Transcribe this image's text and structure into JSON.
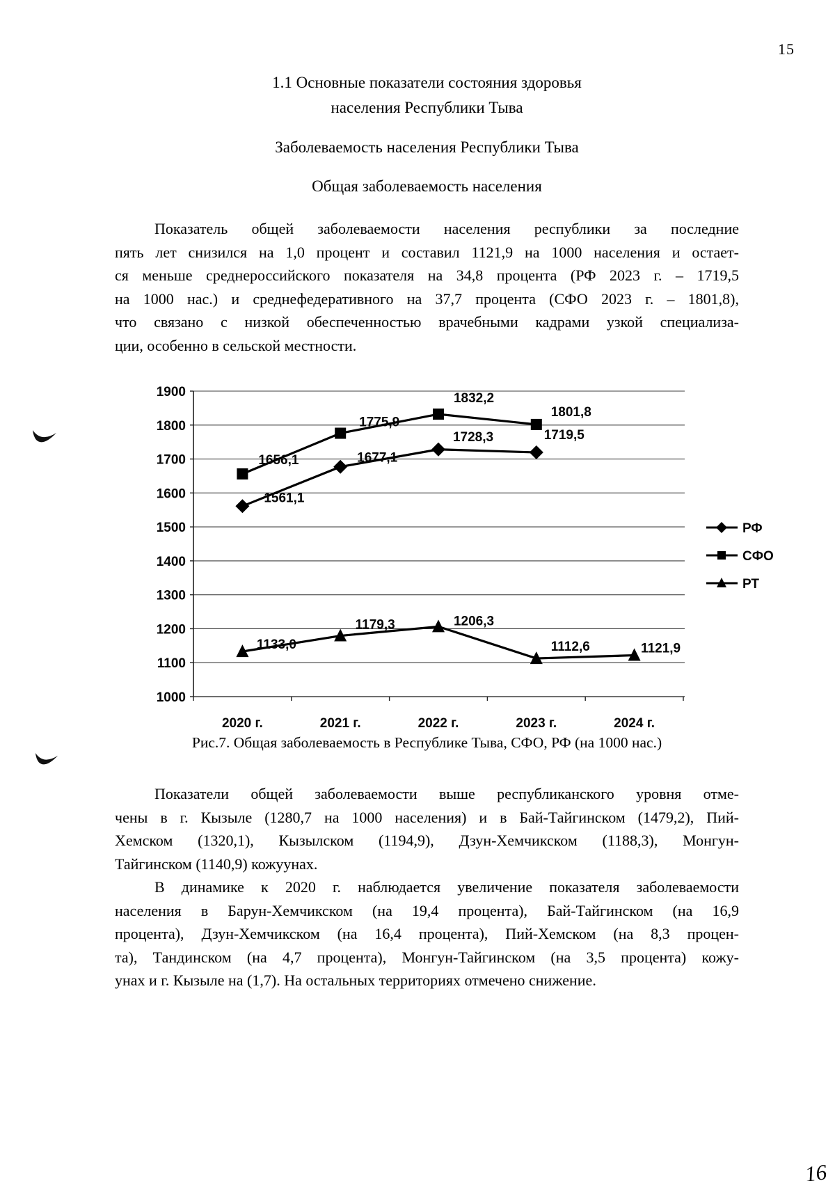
{
  "page": {
    "number": "15",
    "handwritten_next_page_number": "16"
  },
  "headings": {
    "title_line1": "1.1 Основные показатели состояния здоровья",
    "title_line2": "населения Республики Тыва",
    "subtitle1": "Заболеваемость населения Республики Тыва",
    "subtitle2": "Общая заболеваемость населения"
  },
  "paragraph1_lines": [
    "Показатель общей заболеваемости населения республики за последние",
    "пять лет снизился на 1,0 процент и составил 1121,9 на 1000 населения и остает-",
    "ся меньше среднероссийского показателя на 34,8 процента (РФ 2023 г. – 1719,5",
    "на 1000 нас.) и среднефедеративного на 37,7 процента (СФО 2023 г. – 1801,8),",
    "что связано с низкой обеспеченностью врачебными кадрами узкой специализа-",
    "ции, особенно в сельской местности."
  ],
  "paragraph2_lines": [
    "Показатели общей заболеваемости выше республиканского уровня отме-",
    "чены в г. Кызыле (1280,7 на 1000 населения) и в Бай-Тайгинском (1479,2), Пий-",
    "Хемском (1320,1), Кызылском (1194,9), Дзун-Хемчикском (1188,3), Монгун-",
    "Тайгинском (1140,9) кожуунах."
  ],
  "paragraph3_lines": [
    "В динамике к 2020 г. наблюдается увеличение показателя заболеваемости",
    "населения в Барун-Хемчикском (на 19,4 процента), Бай-Тайгинском (на 16,9",
    "процента), Дзун-Хемчикском (на 16,4 процента), Пий-Хемском (на 8,3 процен-",
    "та), Тандинском (на 4,7 процента), Монгун-Тайгинском (на 3,5 процента) кожу-",
    "унах и г. Кызыле на (1,7). На остальных территориях отмечено снижение."
  ],
  "figure_caption": "Рис.7. Общая заболеваемость в Республике Тыва, СФО, РФ (на 1000 нас.)",
  "chart_data": {
    "type": "line",
    "title": "",
    "xlabel": "",
    "ylabel": "",
    "categories": [
      "2020 г.",
      "2021 г.",
      "2022 г.",
      "2023 г.",
      "2024 г."
    ],
    "ylim": [
      1000,
      1900
    ],
    "ytick_step": 100,
    "grid": true,
    "legend_position": "right",
    "series": [
      {
        "name": "РФ",
        "marker": "diamond",
        "values": [
          1561.1,
          1677.1,
          1728.3,
          1719.5,
          null
        ],
        "value_labels": [
          "1561,1",
          "1677,1",
          "1728,3",
          "1719,5",
          null
        ],
        "label_offsets": [
          [
            60,
            -12
          ],
          [
            53,
            -13
          ],
          [
            50,
            -18
          ],
          [
            40,
            -25
          ],
          null
        ]
      },
      {
        "name": "СФО",
        "marker": "square",
        "values": [
          1656.1,
          1775.9,
          1832.2,
          1801.8,
          null
        ],
        "value_labels": [
          "1656,1",
          "1775,9",
          "1832,2",
          "1801,8",
          null
        ],
        "label_offsets": [
          [
            52,
            -20
          ],
          [
            56,
            -16
          ],
          [
            51,
            -23
          ],
          [
            50,
            -18
          ],
          null
        ]
      },
      {
        "name": "РТ",
        "marker": "triangle",
        "values": [
          1133.0,
          1179.3,
          1206.3,
          1112.6,
          1121.9
        ],
        "value_labels": [
          "1133,0",
          "1179,3",
          "1206,3",
          "1112,6",
          "1121,9"
        ],
        "label_offsets": [
          [
            49,
            -10
          ],
          [
            50,
            -16
          ],
          [
            51,
            -8
          ],
          [
            49,
            -17
          ],
          [
            38,
            -10
          ]
        ]
      }
    ]
  }
}
